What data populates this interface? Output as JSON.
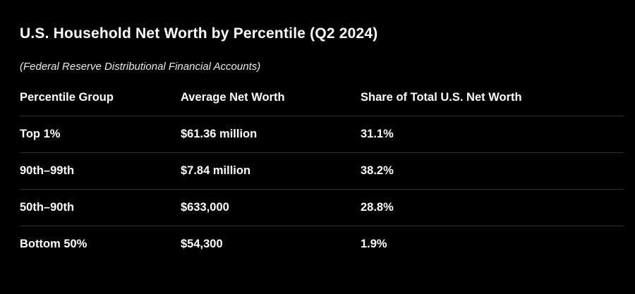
{
  "page": {
    "title": "U.S. Household Net Worth by Percentile (Q2 2024)",
    "subtitle": "(Federal Reserve Distributional Financial Accounts)"
  },
  "table": {
    "headers": [
      "Percentile Group",
      "Average Net Worth",
      "Share of Total U.S. Net Worth"
    ],
    "rows": [
      [
        "Top 1%",
        "$61.36 million",
        "31.1%"
      ],
      [
        "90th–99th",
        "$7.84 million",
        "38.2%"
      ],
      [
        "50th–90th",
        "$633,000",
        "28.8%"
      ],
      [
        "Bottom 50%",
        "$54,300",
        "1.9%"
      ]
    ]
  },
  "chart_data": {
    "type": "table",
    "title": "U.S. Household Net Worth by Percentile (Q2 2024)",
    "subtitle": "(Federal Reserve Distributional Financial Accounts)",
    "columns": [
      "Percentile Group",
      "Average Net Worth",
      "Share of Total U.S. Net Worth"
    ],
    "rows": [
      {
        "percentile_group": "Top 1%",
        "average_net_worth": "$61.36 million",
        "share_of_total": "31.1%"
      },
      {
        "percentile_group": "90th–99th",
        "average_net_worth": "$7.84 million",
        "share_of_total": "38.2%"
      },
      {
        "percentile_group": "50th–90th",
        "average_net_worth": "$633,000",
        "share_of_total": "28.8%"
      },
      {
        "percentile_group": "Bottom 50%",
        "average_net_worth": "$54,300",
        "share_of_total": "1.9%"
      }
    ],
    "share_values_numeric": [
      31.1,
      38.2,
      28.8,
      1.9
    ],
    "colors": {
      "background": "#000000",
      "text": "#ffffff",
      "divider": "#2e2e2e"
    }
  }
}
